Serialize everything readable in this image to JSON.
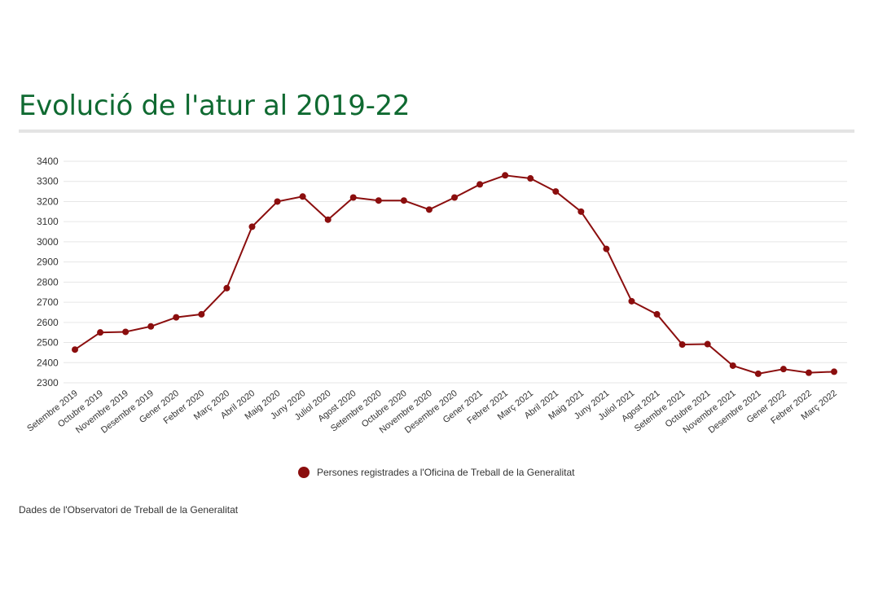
{
  "header": {
    "title": "Evolució de l'atur al 2019-22"
  },
  "chart_data": {
    "type": "line",
    "title": "Evolució de l'atur al 2019-22",
    "xlabel": "",
    "ylabel": "",
    "ylim": [
      2300,
      3400
    ],
    "yticks": [
      2300,
      2400,
      2500,
      2600,
      2700,
      2800,
      2900,
      3000,
      3100,
      3200,
      3300,
      3400
    ],
    "grid": true,
    "legend_position": "bottom",
    "categories": [
      "Setembre 2019",
      "Octubre 2019",
      "Novembre 2019",
      "Desembre 2019",
      "Gener 2020",
      "Febrer 2020",
      "Març 2020",
      "Abril 2020",
      "Maig 2020",
      "Juny 2020",
      "Juliol 2020",
      "Agost 2020",
      "Setembre 2020",
      "Octubre 2020",
      "Novembre 2020",
      "Desembre 2020",
      "Gener 2021",
      "Febrer 2021",
      "Març 2021",
      "Abril 2021",
      "Maig 2021",
      "Juny 2021",
      "Juliol 2021",
      "Agost 2021",
      "Setembre 2021",
      "Octubre 2021",
      "Novembre 2021",
      "Desembre 2021",
      "Gener 2022",
      "Febrer 2022",
      "Març 2022"
    ],
    "series": [
      {
        "name": "Persones registrades a l'Oficina de Treball de la Generalitat",
        "color": "#8b0e0e",
        "values": [
          2465,
          2550,
          2553,
          2580,
          2625,
          2640,
          2770,
          3075,
          3200,
          3225,
          3110,
          3220,
          3205,
          3205,
          3160,
          3220,
          3285,
          3330,
          3315,
          3250,
          3150,
          2965,
          2705,
          2640,
          2490,
          2492,
          2385,
          2345,
          2368,
          2350,
          2355
        ]
      }
    ]
  },
  "legend": {
    "label": "Persones registrades a l'Oficina de Treball de la Generalitat",
    "color": "#8b0e0e"
  },
  "footer": {
    "source": "Dades de l'Observatori de Treball de la Generalitat"
  },
  "colors": {
    "title": "#0f6a31",
    "line": "#8b0e0e",
    "grid": "#e6e6e6",
    "axis_text": "#333333"
  }
}
